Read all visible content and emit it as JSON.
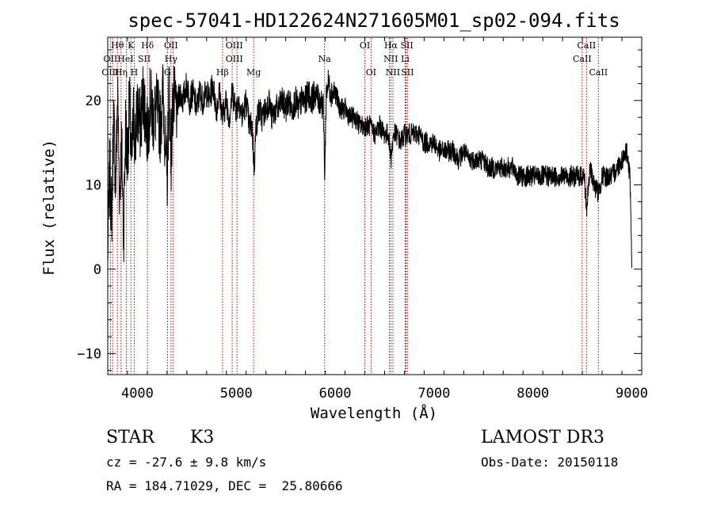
{
  "chart_data": {
    "type": "line",
    "title": "spec-57041-HD122624N271605M01_sp02-094.fits",
    "xlabel": "Wavelength (Å)",
    "ylabel": "Flux (relative)",
    "xlim": [
      3700,
      9100
    ],
    "ylim": [
      -12.5,
      27.5
    ],
    "xticks": [
      4000,
      5000,
      6000,
      7000,
      8000,
      9000
    ],
    "yticks": [
      -10,
      0,
      10,
      20
    ],
    "series": [
      {
        "name": "flux",
        "x": [
          3700,
          3720,
          3740,
          3760,
          3780,
          3800,
          3820,
          3840,
          3860,
          3880,
          3900,
          3920,
          3940,
          3960,
          3980,
          4000,
          4030,
          4060,
          4100,
          4130,
          4160,
          4200,
          4230,
          4260,
          4300,
          4320,
          4340,
          4360,
          4400,
          4430,
          4460,
          4500,
          4530,
          4560,
          4600,
          4630,
          4660,
          4700,
          4730,
          4760,
          4800,
          4830,
          4860,
          4900,
          4930,
          4960,
          5000,
          5030,
          5060,
          5100,
          5130,
          5160,
          5180,
          5200,
          5230,
          5260,
          5300,
          5330,
          5360,
          5400,
          5430,
          5460,
          5500,
          5530,
          5560,
          5600,
          5630,
          5660,
          5700,
          5730,
          5760,
          5800,
          5830,
          5860,
          5880,
          5895,
          5910,
          5930,
          5960,
          6000,
          6050,
          6100,
          6150,
          6200,
          6250,
          6300,
          6350,
          6400,
          6450,
          6500,
          6540,
          6563,
          6590,
          6620,
          6660,
          6700,
          6750,
          6800,
          6850,
          6900,
          6950,
          7000,
          7050,
          7100,
          7150,
          7200,
          7250,
          7300,
          7350,
          7400,
          7450,
          7500,
          7550,
          7600,
          7650,
          7700,
          7750,
          7800,
          7850,
          7900,
          7950,
          8000,
          8050,
          8100,
          8150,
          8200,
          8250,
          8300,
          8350,
          8400,
          8450,
          8498,
          8520,
          8542,
          8580,
          8620,
          8662,
          8700,
          8750,
          8800,
          8850,
          8900,
          8950,
          8980,
          9000
        ],
        "y": [
          2,
          12,
          6,
          18,
          10,
          21,
          9,
          15,
          4,
          17,
          13,
          20,
          12,
          18,
          15,
          19,
          17,
          21,
          16,
          20,
          18,
          19,
          17,
          21,
          10,
          22,
          13,
          20,
          19,
          21,
          20,
          22,
          20,
          21,
          19,
          21,
          20,
          21,
          20,
          22,
          19,
          21,
          18,
          20,
          18,
          21,
          19,
          20,
          18,
          20,
          17,
          17,
          12,
          17,
          19,
          18,
          19,
          20,
          18,
          19,
          19,
          20,
          19,
          20,
          19,
          20,
          19,
          20,
          20,
          21,
          20,
          21,
          20,
          20,
          19,
          11,
          21,
          22,
          21,
          21,
          19,
          19,
          18,
          18,
          17,
          17,
          17,
          16,
          17,
          16,
          16,
          13,
          16,
          16,
          15,
          16,
          16,
          16,
          16,
          15,
          15,
          15,
          14,
          14,
          14,
          14,
          13,
          14,
          13,
          13,
          13,
          13,
          12,
          12,
          12,
          12,
          12,
          12,
          11,
          11,
          11,
          11,
          11,
          11,
          11,
          11,
          11,
          11,
          11,
          11,
          11,
          11,
          11,
          7,
          12,
          10,
          9,
          11,
          11,
          11,
          12,
          13,
          14,
          11,
          1
        ]
      }
    ],
    "spectral_lines": [
      {
        "label": "Hθ",
        "wavelength": 3798,
        "row": 0
      },
      {
        "label": "K",
        "wavelength": 3934,
        "row": 0
      },
      {
        "label": "Hδ",
        "wavelength": 4102,
        "row": 0
      },
      {
        "label": "OII",
        "wavelength": 4340,
        "row": 0
      },
      {
        "label": "OIII",
        "wavelength": 4980,
        "row": 0
      },
      {
        "label": "OI",
        "wavelength": 6300,
        "row": 0
      },
      {
        "label": "Hα",
        "wavelength": 6563,
        "row": 0
      },
      {
        "label": "SII",
        "wavelength": 6725,
        "row": 0
      },
      {
        "label": "CaII",
        "wavelength": 8542,
        "row": 0
      },
      {
        "label": "OII",
        "wavelength": 3727,
        "row": 1
      },
      {
        "label": "HeI",
        "wavelength": 3880,
        "row": 1
      },
      {
        "label": "SII",
        "wavelength": 4069,
        "row": 1
      },
      {
        "label": "Hγ",
        "wavelength": 4340,
        "row": 1
      },
      {
        "label": "OIII",
        "wavelength": 4980,
        "row": 1
      },
      {
        "label": "Na",
        "wavelength": 5893,
        "row": 1
      },
      {
        "label": "NII",
        "wavelength": 6563,
        "row": 1
      },
      {
        "label": "Li",
        "wavelength": 6708,
        "row": 1
      },
      {
        "label": "CaII",
        "wavelength": 8498,
        "row": 1
      },
      {
        "label": "OIII",
        "wavelength": 3727,
        "row": 2
      },
      {
        "label": "Hη",
        "wavelength": 3835,
        "row": 2
      },
      {
        "label": "H",
        "wavelength": 3968,
        "row": 2
      },
      {
        "label": "G",
        "wavelength": 4304,
        "row": 2
      },
      {
        "label": "Hβ",
        "wavelength": 4861,
        "row": 2
      },
      {
        "label": "Mg",
        "wavelength": 5175,
        "row": 2
      },
      {
        "label": "OI",
        "wavelength": 6363,
        "row": 2
      },
      {
        "label": "NII",
        "wavelength": 6584,
        "row": 2
      },
      {
        "label": "SII",
        "wavelength": 6731,
        "row": 2
      },
      {
        "label": "CaII",
        "wavelength": 8662,
        "row": 2
      }
    ],
    "marker_lines": [
      3727,
      3750,
      3798,
      3835,
      3889,
      3934,
      3968,
      4102,
      4304,
      4340,
      4363,
      4861,
      4959,
      5007,
      5175,
      5893,
      6300,
      6363,
      6548,
      6563,
      6584,
      6708,
      6716,
      6731,
      8498,
      8542,
      8662
    ],
    "line_color": "#b00000"
  },
  "info": {
    "object_class": "STAR",
    "subclass": "K3",
    "survey": "LAMOST DR3",
    "cz": "cz = -27.6 ± 9.8 km/s",
    "obs_date": "Obs-Date: 20150118",
    "coords": "RA = 184.71029, DEC =  25.80666"
  }
}
